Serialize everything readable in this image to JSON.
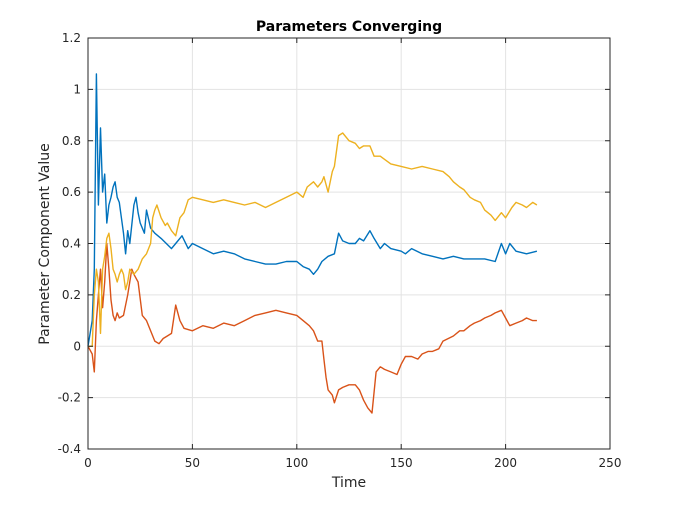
{
  "chart_data": {
    "type": "line",
    "title": "Parameters Converging",
    "xlabel": "Time",
    "ylabel": "Parameter Component Value",
    "xlim": [
      0,
      250
    ],
    "ylim": [
      -0.4,
      1.2
    ],
    "xticks": [
      0,
      50,
      100,
      150,
      200,
      250
    ],
    "yticks": [
      -0.4,
      -0.2,
      0,
      0.2,
      0.4,
      0.6,
      0.8,
      1,
      1.2
    ],
    "xtick_labels": [
      "0",
      "50",
      "100",
      "150",
      "200",
      "250"
    ],
    "ytick_labels": [
      "-0.4",
      "-0.2",
      "0",
      "0.2",
      "0.4",
      "0.6",
      "0.8",
      "1",
      "1.2"
    ],
    "grid": true,
    "legend": "none",
    "series": [
      {
        "color": "#0072BD",
        "points": [
          [
            0,
            0
          ],
          [
            2,
            0.1
          ],
          [
            3,
            0.3
          ],
          [
            4,
            1.06
          ],
          [
            5,
            0.55
          ],
          [
            6,
            0.85
          ],
          [
            7,
            0.6
          ],
          [
            8,
            0.67
          ],
          [
            9,
            0.48
          ],
          [
            10,
            0.55
          ],
          [
            11,
            0.58
          ],
          [
            12,
            0.62
          ],
          [
            13,
            0.64
          ],
          [
            14,
            0.58
          ],
          [
            15,
            0.56
          ],
          [
            16,
            0.5
          ],
          [
            17,
            0.44
          ],
          [
            18,
            0.36
          ],
          [
            19,
            0.45
          ],
          [
            20,
            0.4
          ],
          [
            22,
            0.55
          ],
          [
            23,
            0.58
          ],
          [
            24,
            0.52
          ],
          [
            25,
            0.48
          ],
          [
            27,
            0.44
          ],
          [
            28,
            0.53
          ],
          [
            30,
            0.46
          ],
          [
            32,
            0.44
          ],
          [
            35,
            0.42
          ],
          [
            40,
            0.38
          ],
          [
            42,
            0.4
          ],
          [
            45,
            0.43
          ],
          [
            48,
            0.38
          ],
          [
            50,
            0.4
          ],
          [
            55,
            0.38
          ],
          [
            60,
            0.36
          ],
          [
            65,
            0.37
          ],
          [
            70,
            0.36
          ],
          [
            75,
            0.34
          ],
          [
            80,
            0.33
          ],
          [
            85,
            0.32
          ],
          [
            90,
            0.32
          ],
          [
            95,
            0.33
          ],
          [
            100,
            0.33
          ],
          [
            103,
            0.31
          ],
          [
            106,
            0.3
          ],
          [
            108,
            0.28
          ],
          [
            110,
            0.3
          ],
          [
            112,
            0.33
          ],
          [
            115,
            0.35
          ],
          [
            118,
            0.36
          ],
          [
            120,
            0.44
          ],
          [
            122,
            0.41
          ],
          [
            125,
            0.4
          ],
          [
            128,
            0.4
          ],
          [
            130,
            0.42
          ],
          [
            132,
            0.41
          ],
          [
            135,
            0.45
          ],
          [
            137,
            0.42
          ],
          [
            140,
            0.38
          ],
          [
            142,
            0.4
          ],
          [
            145,
            0.38
          ],
          [
            150,
            0.37
          ],
          [
            152,
            0.36
          ],
          [
            155,
            0.38
          ],
          [
            160,
            0.36
          ],
          [
            165,
            0.35
          ],
          [
            170,
            0.34
          ],
          [
            175,
            0.35
          ],
          [
            180,
            0.34
          ],
          [
            185,
            0.34
          ],
          [
            190,
            0.34
          ],
          [
            195,
            0.33
          ],
          [
            198,
            0.4
          ],
          [
            200,
            0.36
          ],
          [
            202,
            0.4
          ],
          [
            205,
            0.37
          ],
          [
            210,
            0.36
          ],
          [
            215,
            0.37
          ]
        ]
      },
      {
        "color": "#D95319",
        "points": [
          [
            0,
            0
          ],
          [
            2,
            -0.03
          ],
          [
            3,
            -0.1
          ],
          [
            4,
            0.1
          ],
          [
            5,
            0.2
          ],
          [
            6,
            0.3
          ],
          [
            7,
            0.15
          ],
          [
            8,
            0.25
          ],
          [
            9,
            0.4
          ],
          [
            10,
            0.3
          ],
          [
            11,
            0.18
          ],
          [
            12,
            0.12
          ],
          [
            13,
            0.1
          ],
          [
            14,
            0.13
          ],
          [
            15,
            0.11
          ],
          [
            17,
            0.12
          ],
          [
            19,
            0.2
          ],
          [
            21,
            0.3
          ],
          [
            22,
            0.28
          ],
          [
            24,
            0.25
          ],
          [
            26,
            0.12
          ],
          [
            28,
            0.1
          ],
          [
            30,
            0.06
          ],
          [
            32,
            0.02
          ],
          [
            34,
            0.01
          ],
          [
            36,
            0.03
          ],
          [
            38,
            0.04
          ],
          [
            40,
            0.05
          ],
          [
            42,
            0.16
          ],
          [
            44,
            0.1
          ],
          [
            46,
            0.07
          ],
          [
            50,
            0.06
          ],
          [
            55,
            0.08
          ],
          [
            60,
            0.07
          ],
          [
            65,
            0.09
          ],
          [
            70,
            0.08
          ],
          [
            75,
            0.1
          ],
          [
            80,
            0.12
          ],
          [
            85,
            0.13
          ],
          [
            90,
            0.14
          ],
          [
            95,
            0.13
          ],
          [
            100,
            0.12
          ],
          [
            103,
            0.1
          ],
          [
            106,
            0.08
          ],
          [
            108,
            0.06
          ],
          [
            110,
            0.02
          ],
          [
            112,
            0.02
          ],
          [
            113,
            -0.05
          ],
          [
            114,
            -0.12
          ],
          [
            115,
            -0.17
          ],
          [
            117,
            -0.19
          ],
          [
            118,
            -0.22
          ],
          [
            120,
            -0.17
          ],
          [
            122,
            -0.16
          ],
          [
            125,
            -0.15
          ],
          [
            128,
            -0.15
          ],
          [
            130,
            -0.17
          ],
          [
            132,
            -0.21
          ],
          [
            134,
            -0.24
          ],
          [
            136,
            -0.26
          ],
          [
            138,
            -0.1
          ],
          [
            140,
            -0.08
          ],
          [
            142,
            -0.09
          ],
          [
            145,
            -0.1
          ],
          [
            148,
            -0.11
          ],
          [
            150,
            -0.07
          ],
          [
            152,
            -0.04
          ],
          [
            155,
            -0.04
          ],
          [
            158,
            -0.05
          ],
          [
            160,
            -0.03
          ],
          [
            163,
            -0.02
          ],
          [
            165,
            -0.02
          ],
          [
            168,
            -0.01
          ],
          [
            170,
            0.02
          ],
          [
            175,
            0.04
          ],
          [
            178,
            0.06
          ],
          [
            180,
            0.06
          ],
          [
            183,
            0.08
          ],
          [
            185,
            0.09
          ],
          [
            188,
            0.1
          ],
          [
            190,
            0.11
          ],
          [
            193,
            0.12
          ],
          [
            195,
            0.13
          ],
          [
            198,
            0.14
          ],
          [
            200,
            0.11
          ],
          [
            202,
            0.08
          ],
          [
            205,
            0.09
          ],
          [
            208,
            0.1
          ],
          [
            210,
            0.11
          ],
          [
            213,
            0.1
          ],
          [
            215,
            0.1
          ]
        ]
      },
      {
        "color": "#EDB120",
        "points": [
          [
            0,
            0
          ],
          [
            2,
            0
          ],
          [
            3,
            0.2
          ],
          [
            4,
            0.3
          ],
          [
            5,
            0.25
          ],
          [
            6,
            0.05
          ],
          [
            7,
            0.3
          ],
          [
            8,
            0.35
          ],
          [
            9,
            0.42
          ],
          [
            10,
            0.44
          ],
          [
            11,
            0.38
          ],
          [
            12,
            0.3
          ],
          [
            13,
            0.28
          ],
          [
            14,
            0.25
          ],
          [
            15,
            0.28
          ],
          [
            16,
            0.3
          ],
          [
            17,
            0.28
          ],
          [
            18,
            0.22
          ],
          [
            19,
            0.25
          ],
          [
            20,
            0.3
          ],
          [
            22,
            0.28
          ],
          [
            24,
            0.3
          ],
          [
            25,
            0.32
          ],
          [
            26,
            0.34
          ],
          [
            28,
            0.36
          ],
          [
            30,
            0.4
          ],
          [
            31,
            0.5
          ],
          [
            32,
            0.53
          ],
          [
            33,
            0.55
          ],
          [
            35,
            0.5
          ],
          [
            37,
            0.47
          ],
          [
            38,
            0.48
          ],
          [
            40,
            0.45
          ],
          [
            42,
            0.43
          ],
          [
            44,
            0.5
          ],
          [
            46,
            0.52
          ],
          [
            48,
            0.57
          ],
          [
            50,
            0.58
          ],
          [
            55,
            0.57
          ],
          [
            60,
            0.56
          ],
          [
            65,
            0.57
          ],
          [
            70,
            0.56
          ],
          [
            75,
            0.55
          ],
          [
            80,
            0.56
          ],
          [
            85,
            0.54
          ],
          [
            90,
            0.56
          ],
          [
            95,
            0.58
          ],
          [
            100,
            0.6
          ],
          [
            103,
            0.58
          ],
          [
            105,
            0.62
          ],
          [
            108,
            0.64
          ],
          [
            110,
            0.62
          ],
          [
            112,
            0.64
          ],
          [
            113,
            0.66
          ],
          [
            115,
            0.6
          ],
          [
            117,
            0.68
          ],
          [
            118,
            0.7
          ],
          [
            120,
            0.82
          ],
          [
            122,
            0.83
          ],
          [
            125,
            0.8
          ],
          [
            128,
            0.79
          ],
          [
            130,
            0.77
          ],
          [
            132,
            0.78
          ],
          [
            135,
            0.78
          ],
          [
            137,
            0.74
          ],
          [
            140,
            0.74
          ],
          [
            145,
            0.71
          ],
          [
            150,
            0.7
          ],
          [
            155,
            0.69
          ],
          [
            160,
            0.7
          ],
          [
            165,
            0.69
          ],
          [
            170,
            0.68
          ],
          [
            173,
            0.66
          ],
          [
            175,
            0.64
          ],
          [
            178,
            0.62
          ],
          [
            180,
            0.61
          ],
          [
            183,
            0.58
          ],
          [
            185,
            0.57
          ],
          [
            188,
            0.56
          ],
          [
            190,
            0.53
          ],
          [
            193,
            0.51
          ],
          [
            195,
            0.49
          ],
          [
            198,
            0.52
          ],
          [
            200,
            0.5
          ],
          [
            203,
            0.54
          ],
          [
            205,
            0.56
          ],
          [
            208,
            0.55
          ],
          [
            210,
            0.54
          ],
          [
            213,
            0.56
          ],
          [
            215,
            0.55
          ]
        ]
      }
    ]
  }
}
